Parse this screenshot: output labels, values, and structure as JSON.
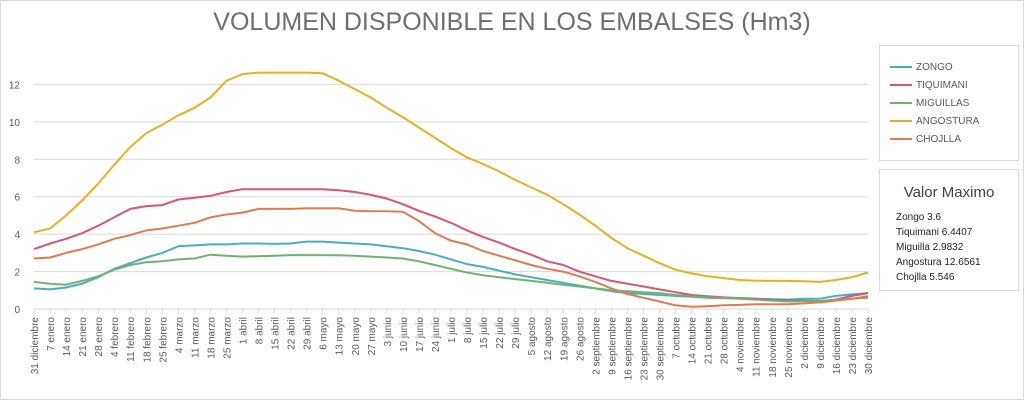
{
  "chart_data": {
    "type": "line",
    "title": "VOLUMEN DISPONIBLE EN LOS EMBALSES (Hm3)",
    "xlabel": "",
    "ylabel": "",
    "ylim": [
      0,
      14
    ],
    "yticks": [
      0,
      2,
      4,
      6,
      8,
      10,
      12
    ],
    "grid": "horizontal",
    "legend_position": "right",
    "categories": [
      "31 diciembre",
      "7 enero",
      "14 enero",
      "21 enero",
      "28 enero",
      "4 febrero",
      "11 febrero",
      "18 febrero",
      "25 febrero",
      "4 marzo",
      "11 marzo",
      "18 marzo",
      "25 marzo",
      "1 abril",
      "8 abril",
      "15 abril",
      "22 abril",
      "29 abril",
      "6 mayo",
      "13 mayo",
      "20 mayo",
      "27 mayo",
      "3 junio",
      "10 junio",
      "17 junio",
      "24 junio",
      "1 julio",
      "8 julio",
      "15 julio",
      "22 julio",
      "29 julio",
      "5 agosto",
      "12 agosto",
      "19 agosto",
      "26 agosto",
      "2 septiembre",
      "9 septiembre",
      "16 septiembre",
      "23 septiembre",
      "30 septiembre",
      "7 octubre",
      "14 octubre",
      "21 octubre",
      "28 octubre",
      "4 noviembre",
      "11 noviembre",
      "18 noviembre",
      "25 noviembre",
      "2 diciembre",
      "9 diciembre",
      "16 diciembre",
      "23 diciembre",
      "30 diciembre"
    ],
    "series": [
      {
        "name": "ZONGO",
        "color": "#4bacc6",
        "values": [
          1.1,
          1.05,
          1.15,
          1.35,
          1.7,
          2.15,
          2.45,
          2.75,
          3.0,
          3.35,
          3.4,
          3.45,
          3.45,
          3.5,
          3.5,
          3.48,
          3.5,
          3.6,
          3.6,
          3.55,
          3.5,
          3.45,
          3.35,
          3.25,
          3.1,
          2.9,
          2.65,
          2.4,
          2.25,
          2.05,
          1.85,
          1.7,
          1.55,
          1.4,
          1.25,
          1.1,
          0.95,
          0.85,
          0.8,
          0.75,
          0.7,
          0.65,
          0.6,
          0.58,
          0.58,
          0.55,
          0.52,
          0.5,
          0.55,
          0.55,
          0.7,
          0.78,
          0.85
        ]
      },
      {
        "name": "TIQUIMANI",
        "color": "#d9537a",
        "values": [
          3.2,
          3.5,
          3.75,
          4.05,
          4.45,
          4.9,
          5.35,
          5.5,
          5.55,
          5.85,
          5.95,
          6.05,
          6.25,
          6.4,
          6.4,
          6.4,
          6.4,
          6.4,
          6.4,
          6.35,
          6.25,
          6.1,
          5.9,
          5.6,
          5.25,
          4.95,
          4.6,
          4.2,
          3.85,
          3.55,
          3.2,
          2.9,
          2.55,
          2.35,
          2.0,
          1.75,
          1.5,
          1.35,
          1.2,
          1.05,
          0.9,
          0.75,
          0.68,
          0.62,
          0.58,
          0.55,
          0.5,
          0.48,
          0.45,
          0.42,
          0.5,
          0.7,
          0.85
        ]
      },
      {
        "name": "MIGUILLAS",
        "color": "#6fb36f",
        "values": [
          1.45,
          1.35,
          1.3,
          1.5,
          1.75,
          2.1,
          2.35,
          2.5,
          2.55,
          2.65,
          2.7,
          2.9,
          2.85,
          2.8,
          2.82,
          2.85,
          2.88,
          2.88,
          2.88,
          2.87,
          2.85,
          2.8,
          2.75,
          2.7,
          2.55,
          2.35,
          2.15,
          1.95,
          1.8,
          1.7,
          1.6,
          1.5,
          1.4,
          1.3,
          1.2,
          1.1,
          1.0,
          0.95,
          0.9,
          0.85,
          0.75,
          0.68,
          0.62,
          0.58,
          0.55,
          0.5,
          0.45,
          0.4,
          0.42,
          0.42,
          0.5,
          0.55,
          0.6
        ]
      },
      {
        "name": "ANGOSTURA",
        "color": "#e6b01f",
        "values": [
          4.1,
          4.3,
          5.0,
          5.8,
          6.7,
          7.7,
          8.65,
          9.4,
          9.85,
          10.35,
          10.75,
          11.3,
          12.2,
          12.55,
          12.63,
          12.63,
          12.63,
          12.63,
          12.6,
          12.2,
          11.75,
          11.3,
          10.75,
          10.25,
          9.7,
          9.15,
          8.6,
          8.1,
          7.75,
          7.35,
          6.9,
          6.5,
          6.1,
          5.6,
          5.05,
          4.45,
          3.8,
          3.25,
          2.85,
          2.45,
          2.1,
          1.9,
          1.75,
          1.65,
          1.55,
          1.52,
          1.5,
          1.5,
          1.48,
          1.45,
          1.55,
          1.7,
          1.95
        ]
      },
      {
        "name": "CHOJLLA",
        "color": "#e07b4f",
        "values": [
          2.7,
          2.75,
          3.0,
          3.2,
          3.45,
          3.75,
          3.95,
          4.2,
          4.3,
          4.45,
          4.6,
          4.9,
          5.05,
          5.15,
          5.35,
          5.35,
          5.35,
          5.38,
          5.38,
          5.38,
          5.25,
          5.22,
          5.22,
          5.2,
          4.7,
          4.05,
          3.65,
          3.45,
          3.1,
          2.85,
          2.6,
          2.35,
          2.15,
          2.0,
          1.75,
          1.45,
          1.1,
          0.8,
          0.6,
          0.4,
          0.2,
          0.12,
          0.15,
          0.2,
          0.22,
          0.25,
          0.25,
          0.25,
          0.3,
          0.35,
          0.45,
          0.55,
          0.68
        ]
      }
    ]
  },
  "max_box": {
    "title": "Valor Maximo",
    "rows": [
      "Zongo 3.6",
      "Tiquimani 6.4407",
      "Miguilla 2.9832",
      "Angostura 12.6561",
      "Chojlla 5.546"
    ]
  }
}
